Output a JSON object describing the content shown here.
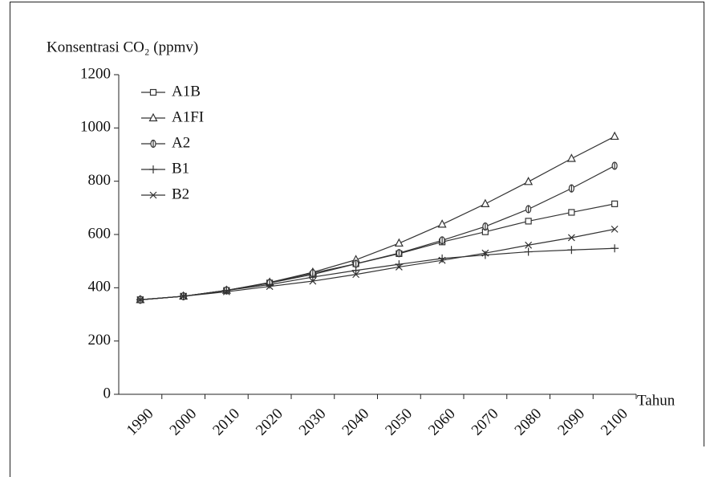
{
  "chart_data": {
    "type": "line",
    "title": "Konsentrasi CO₂ (ppmv)",
    "x_label": "Tahun",
    "categories": [
      "1990",
      "2000",
      "2010",
      "2020",
      "2030",
      "2040",
      "2050",
      "2060",
      "2070",
      "2080",
      "2090",
      "2100"
    ],
    "ylim": [
      0,
      1200
    ],
    "yticks": [
      0,
      200,
      400,
      600,
      800,
      1000,
      1200
    ],
    "legend": "upper-left",
    "series": [
      {
        "name": "A1B",
        "marker": "square",
        "color": "#333333",
        "values": [
          355,
          368,
          390,
          418,
          450,
          490,
          528,
          572,
          610,
          650,
          683,
          715
        ]
      },
      {
        "name": "A1FI",
        "marker": "triangle",
        "color": "#333333",
        "values": [
          355,
          368,
          390,
          420,
          458,
          505,
          567,
          638,
          715,
          798,
          885,
          968
        ]
      },
      {
        "name": "A2",
        "marker": "diamond",
        "color": "#333333",
        "values": [
          355,
          368,
          390,
          418,
          455,
          490,
          530,
          578,
          630,
          695,
          773,
          858
        ]
      },
      {
        "name": "B1",
        "marker": "plus",
        "color": "#333333",
        "values": [
          355,
          368,
          390,
          412,
          440,
          465,
          488,
          510,
          523,
          535,
          542,
          548
        ]
      },
      {
        "name": "B2",
        "marker": "x",
        "color": "#333333",
        "values": [
          355,
          368,
          385,
          405,
          425,
          450,
          478,
          503,
          530,
          560,
          588,
          620
        ]
      }
    ]
  }
}
